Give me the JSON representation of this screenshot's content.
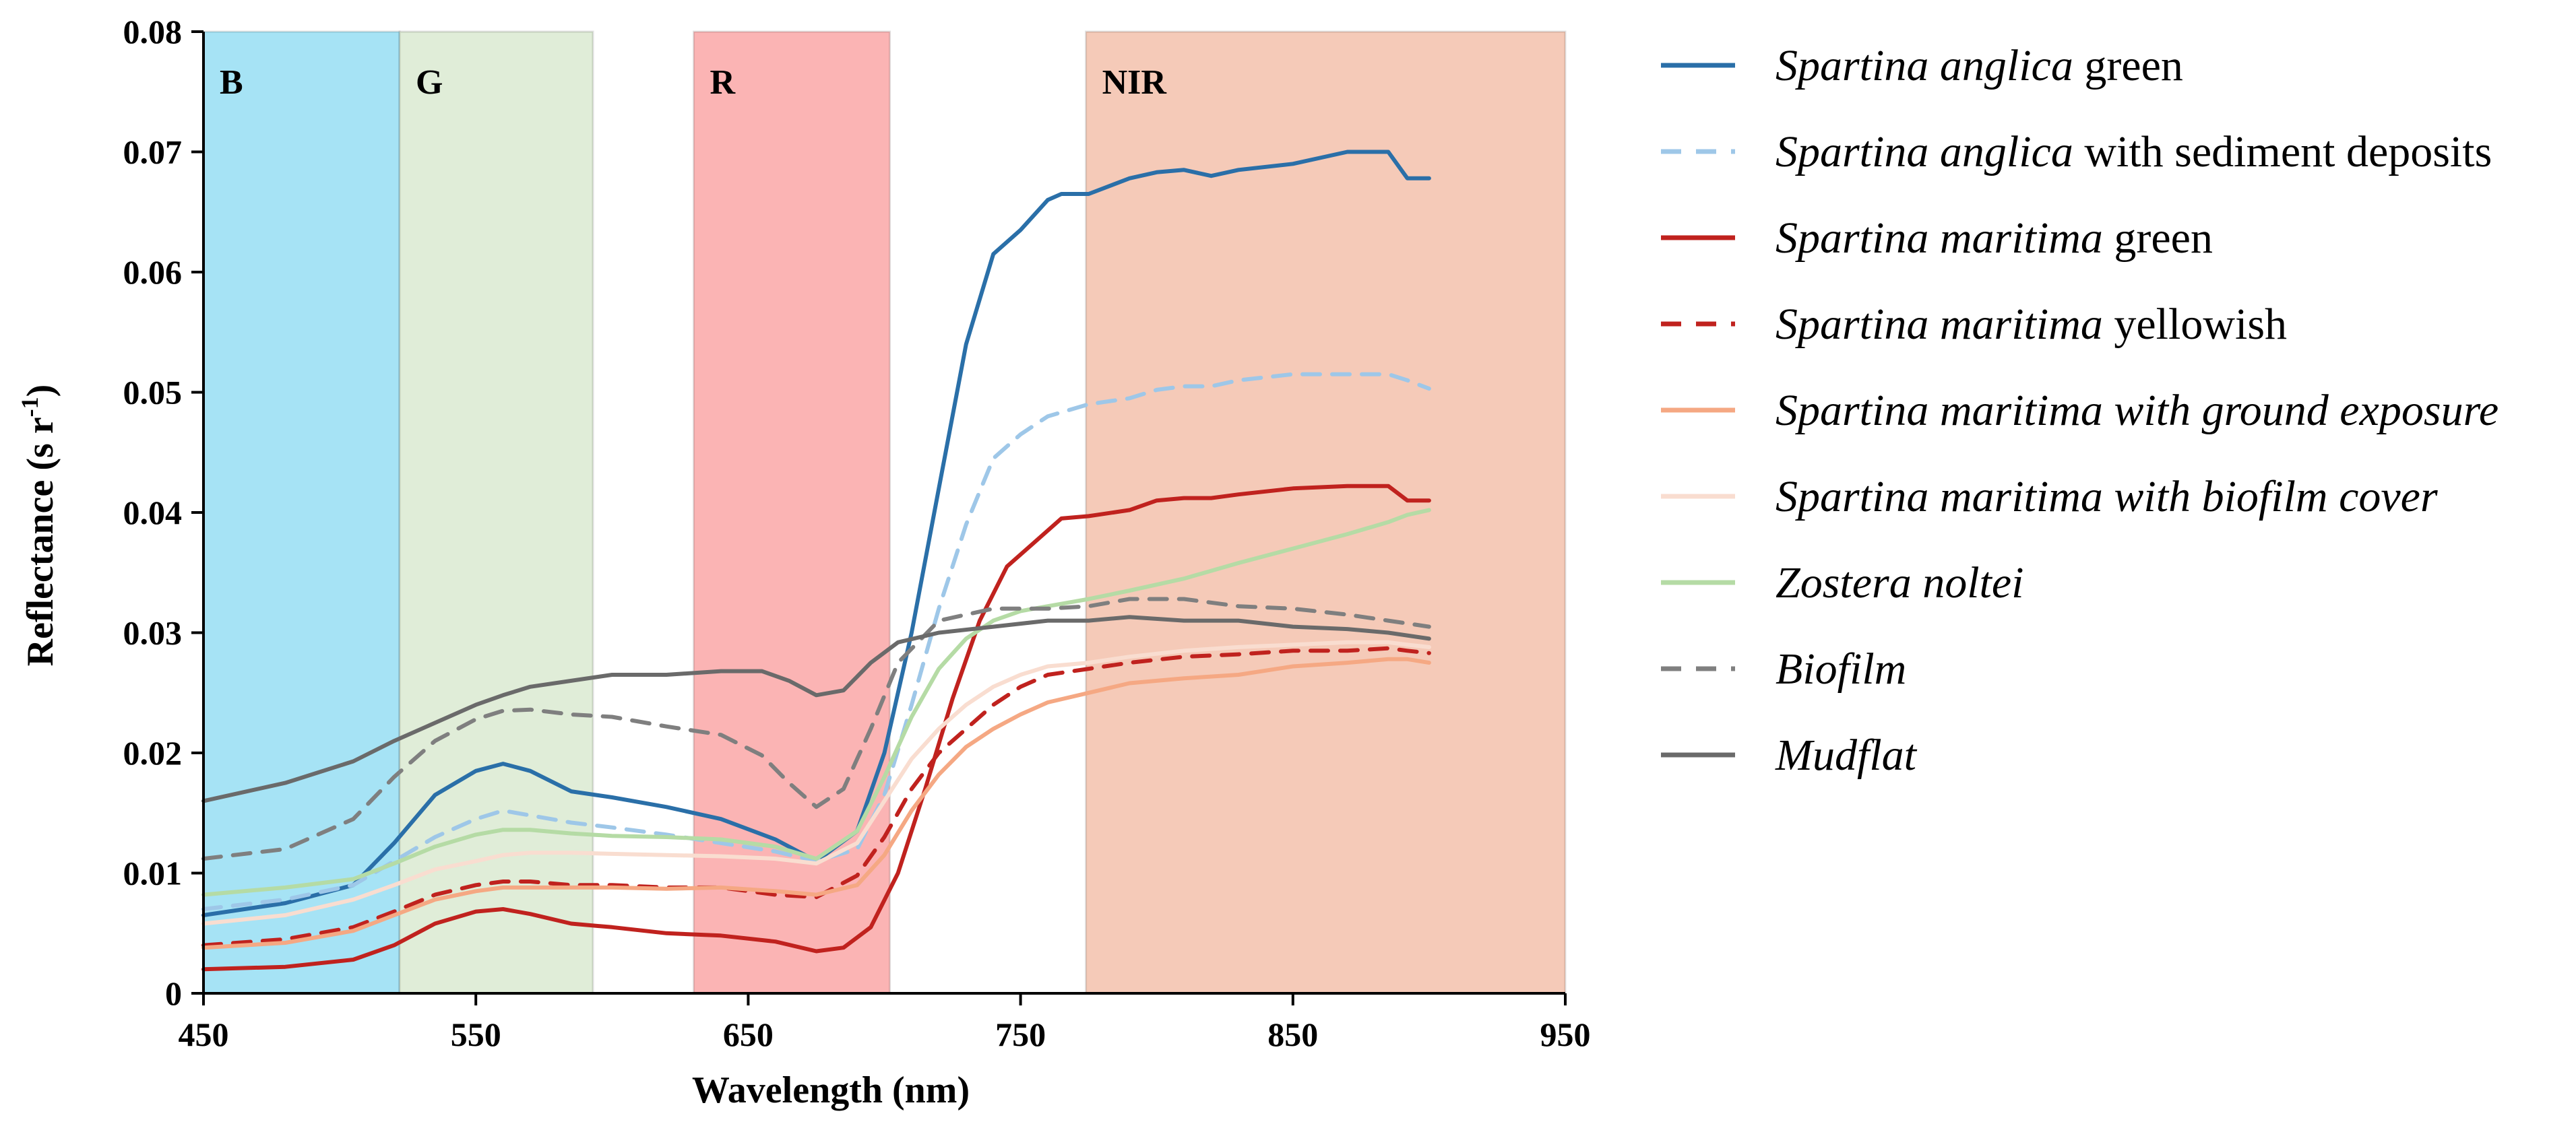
{
  "chart_data": {
    "type": "line",
    "title": "",
    "xlabel": "Wavelength (nm)",
    "ylabel_main": "Reflectance (s r",
    "ylabel_sup": "-1",
    "ylabel_close": ")",
    "xlim": [
      450,
      950
    ],
    "ylim": [
      0,
      0.08
    ],
    "x_ticks": [
      450,
      550,
      650,
      750,
      850,
      950
    ],
    "x_tick_labels": [
      "450",
      "550",
      "650",
      "750",
      "850",
      "950"
    ],
    "y_ticks": [
      0,
      0.01,
      0.02,
      0.03,
      0.04,
      0.05,
      0.06,
      0.07,
      0.08
    ],
    "y_tick_labels": [
      "0",
      "0.01",
      "0.02",
      "0.03",
      "0.04",
      "0.05",
      "0.06",
      "0.07",
      "0.08"
    ],
    "grid": false,
    "legend_position": "right",
    "bands": [
      {
        "label": "B",
        "from": 450,
        "to": 522,
        "color": "#a6e3f5"
      },
      {
        "label": "G",
        "from": 522,
        "to": 593,
        "color": "#e0edd8"
      },
      {
        "label": "R",
        "from": 630,
        "to": 702,
        "color": "#fbb4b4"
      },
      {
        "label": "NIR",
        "from": 774,
        "to": 950,
        "color": "#f5cab8"
      }
    ],
    "series": [
      {
        "legend_italic": "Spartina anglica",
        "legend_rest": " green",
        "color": "#2a6fa8",
        "dash": "solid",
        "x": [
          450,
          480,
          505,
          520,
          535,
          550,
          560,
          570,
          585,
          600,
          620,
          640,
          660,
          675,
          690,
          700,
          710,
          720,
          730,
          740,
          750,
          760,
          765,
          775,
          790,
          800,
          810,
          820,
          830,
          850,
          870,
          885,
          892,
          900
        ],
        "y": [
          0.0065,
          0.0075,
          0.009,
          0.0125,
          0.0165,
          0.0185,
          0.0191,
          0.0185,
          0.0168,
          0.0163,
          0.0155,
          0.0145,
          0.0128,
          0.011,
          0.0135,
          0.02,
          0.03,
          0.042,
          0.054,
          0.0615,
          0.0635,
          0.066,
          0.0665,
          0.0665,
          0.0678,
          0.0683,
          0.0685,
          0.068,
          0.0685,
          0.069,
          0.07,
          0.07,
          0.0678,
          0.0678
        ]
      },
      {
        "legend_italic": "Spartina anglica",
        "legend_rest": " with sediment deposits",
        "color": "#9ec7e8",
        "dash": "dashed",
        "x": [
          450,
          480,
          505,
          520,
          535,
          550,
          560,
          570,
          585,
          600,
          620,
          640,
          660,
          675,
          690,
          700,
          710,
          720,
          730,
          740,
          750,
          760,
          775,
          790,
          800,
          810,
          820,
          830,
          850,
          870,
          885,
          892,
          900
        ],
        "y": [
          0.007,
          0.0078,
          0.009,
          0.011,
          0.013,
          0.0145,
          0.0152,
          0.0148,
          0.0142,
          0.0138,
          0.0132,
          0.0125,
          0.0118,
          0.011,
          0.012,
          0.0165,
          0.024,
          0.032,
          0.039,
          0.0445,
          0.0465,
          0.048,
          0.049,
          0.0495,
          0.0502,
          0.0505,
          0.0505,
          0.051,
          0.0515,
          0.0515,
          0.0515,
          0.051,
          0.0503
        ]
      },
      {
        "legend_italic": "Spartina maritima",
        "legend_rest": " green",
        "color": "#c0221e",
        "dash": "solid",
        "x": [
          450,
          480,
          505,
          520,
          535,
          550,
          560,
          570,
          585,
          600,
          620,
          640,
          660,
          675,
          685,
          695,
          705,
          715,
          725,
          735,
          745,
          755,
          765,
          775,
          790,
          800,
          810,
          820,
          830,
          850,
          870,
          885,
          892,
          900
        ],
        "y": [
          0.002,
          0.0022,
          0.0028,
          0.004,
          0.0058,
          0.0068,
          0.007,
          0.0066,
          0.0058,
          0.0055,
          0.005,
          0.0048,
          0.0043,
          0.0035,
          0.0038,
          0.0055,
          0.01,
          0.017,
          0.0245,
          0.031,
          0.0355,
          0.0375,
          0.0395,
          0.0397,
          0.0402,
          0.041,
          0.0412,
          0.0412,
          0.0415,
          0.042,
          0.0422,
          0.0422,
          0.041,
          0.041
        ]
      },
      {
        "legend_italic": "Spartina maritima",
        "legend_rest": " yellowish",
        "color": "#c0221e",
        "dash": "dashed",
        "x": [
          450,
          480,
          505,
          520,
          535,
          550,
          560,
          570,
          585,
          600,
          620,
          640,
          660,
          675,
          690,
          700,
          710,
          720,
          730,
          740,
          750,
          760,
          775,
          790,
          810,
          830,
          850,
          870,
          885,
          892,
          900
        ],
        "y": [
          0.004,
          0.0045,
          0.0055,
          0.0068,
          0.0082,
          0.009,
          0.0093,
          0.0093,
          0.009,
          0.009,
          0.0088,
          0.0088,
          0.0082,
          0.008,
          0.0098,
          0.013,
          0.017,
          0.02,
          0.022,
          0.024,
          0.0255,
          0.0265,
          0.027,
          0.0275,
          0.028,
          0.0282,
          0.0285,
          0.0285,
          0.0287,
          0.0285,
          0.0283
        ]
      },
      {
        "legend_italic": "Spartina maritima with ground exposure",
        "legend_rest": "",
        "color": "#f5a883",
        "dash": "solid",
        "x": [
          450,
          480,
          505,
          520,
          535,
          550,
          560,
          570,
          585,
          600,
          620,
          640,
          660,
          675,
          690,
          700,
          710,
          720,
          730,
          740,
          750,
          760,
          775,
          790,
          810,
          830,
          850,
          870,
          885,
          892,
          900
        ],
        "y": [
          0.0038,
          0.0042,
          0.0052,
          0.0065,
          0.0078,
          0.0085,
          0.0088,
          0.0088,
          0.0088,
          0.0088,
          0.0087,
          0.0088,
          0.0085,
          0.0082,
          0.009,
          0.0115,
          0.0152,
          0.0182,
          0.0205,
          0.022,
          0.0232,
          0.0242,
          0.025,
          0.0258,
          0.0262,
          0.0265,
          0.0272,
          0.0275,
          0.0278,
          0.0278,
          0.0275
        ]
      },
      {
        "legend_italic": "Spartina maritima with biofilm cover",
        "legend_rest": "",
        "color": "#f9ddd0",
        "dash": "solid",
        "x": [
          450,
          480,
          505,
          520,
          535,
          550,
          560,
          570,
          585,
          600,
          620,
          640,
          660,
          675,
          690,
          700,
          710,
          720,
          730,
          740,
          750,
          760,
          775,
          790,
          810,
          830,
          850,
          870,
          885,
          892,
          900
        ],
        "y": [
          0.0058,
          0.0065,
          0.0078,
          0.009,
          0.0103,
          0.011,
          0.0115,
          0.0117,
          0.0117,
          0.0116,
          0.0115,
          0.0114,
          0.0112,
          0.0108,
          0.0125,
          0.016,
          0.0195,
          0.022,
          0.024,
          0.0255,
          0.0265,
          0.0272,
          0.0275,
          0.028,
          0.0285,
          0.0288,
          0.029,
          0.0292,
          0.0292,
          0.029,
          0.0288
        ]
      },
      {
        "legend_italic": "Zostera noltei",
        "legend_rest": "",
        "color": "#b5dba5",
        "dash": "solid",
        "x": [
          450,
          480,
          505,
          520,
          535,
          550,
          560,
          570,
          585,
          600,
          620,
          640,
          660,
          675,
          690,
          700,
          710,
          720,
          730,
          740,
          750,
          760,
          775,
          790,
          810,
          830,
          850,
          870,
          885,
          892,
          900
        ],
        "y": [
          0.0082,
          0.0088,
          0.0095,
          0.0108,
          0.0122,
          0.0132,
          0.0136,
          0.0136,
          0.0133,
          0.0131,
          0.013,
          0.0128,
          0.0122,
          0.0112,
          0.0135,
          0.018,
          0.023,
          0.027,
          0.0295,
          0.031,
          0.0318,
          0.0322,
          0.0328,
          0.0335,
          0.0345,
          0.0358,
          0.037,
          0.0382,
          0.0392,
          0.0398,
          0.0402
        ]
      },
      {
        "legend_italic": "Biofilm",
        "legend_rest": "",
        "color": "#7f7f7f",
        "dash": "dashed",
        "x": [
          450,
          480,
          505,
          520,
          535,
          550,
          560,
          570,
          585,
          600,
          620,
          640,
          655,
          665,
          675,
          685,
          695,
          705,
          720,
          740,
          760,
          775,
          790,
          810,
          830,
          850,
          870,
          885,
          900
        ],
        "y": [
          0.0112,
          0.012,
          0.0145,
          0.018,
          0.021,
          0.0228,
          0.0235,
          0.0236,
          0.0232,
          0.023,
          0.0222,
          0.0215,
          0.0198,
          0.0175,
          0.0155,
          0.017,
          0.022,
          0.0275,
          0.031,
          0.032,
          0.032,
          0.0322,
          0.0328,
          0.0328,
          0.0322,
          0.032,
          0.0315,
          0.031,
          0.0305
        ]
      },
      {
        "legend_italic": "Mudflat",
        "legend_rest": "",
        "color": "#6a6a6a",
        "dash": "solid",
        "x": [
          450,
          480,
          505,
          520,
          535,
          550,
          560,
          570,
          585,
          600,
          620,
          640,
          655,
          665,
          675,
          685,
          695,
          705,
          720,
          740,
          760,
          775,
          790,
          810,
          830,
          850,
          870,
          885,
          900
        ],
        "y": [
          0.016,
          0.0175,
          0.0193,
          0.021,
          0.0225,
          0.024,
          0.0248,
          0.0255,
          0.026,
          0.0265,
          0.0265,
          0.0268,
          0.0268,
          0.026,
          0.0248,
          0.0252,
          0.0275,
          0.0292,
          0.03,
          0.0305,
          0.031,
          0.031,
          0.0313,
          0.031,
          0.031,
          0.0305,
          0.0303,
          0.03,
          0.0295
        ]
      }
    ]
  }
}
